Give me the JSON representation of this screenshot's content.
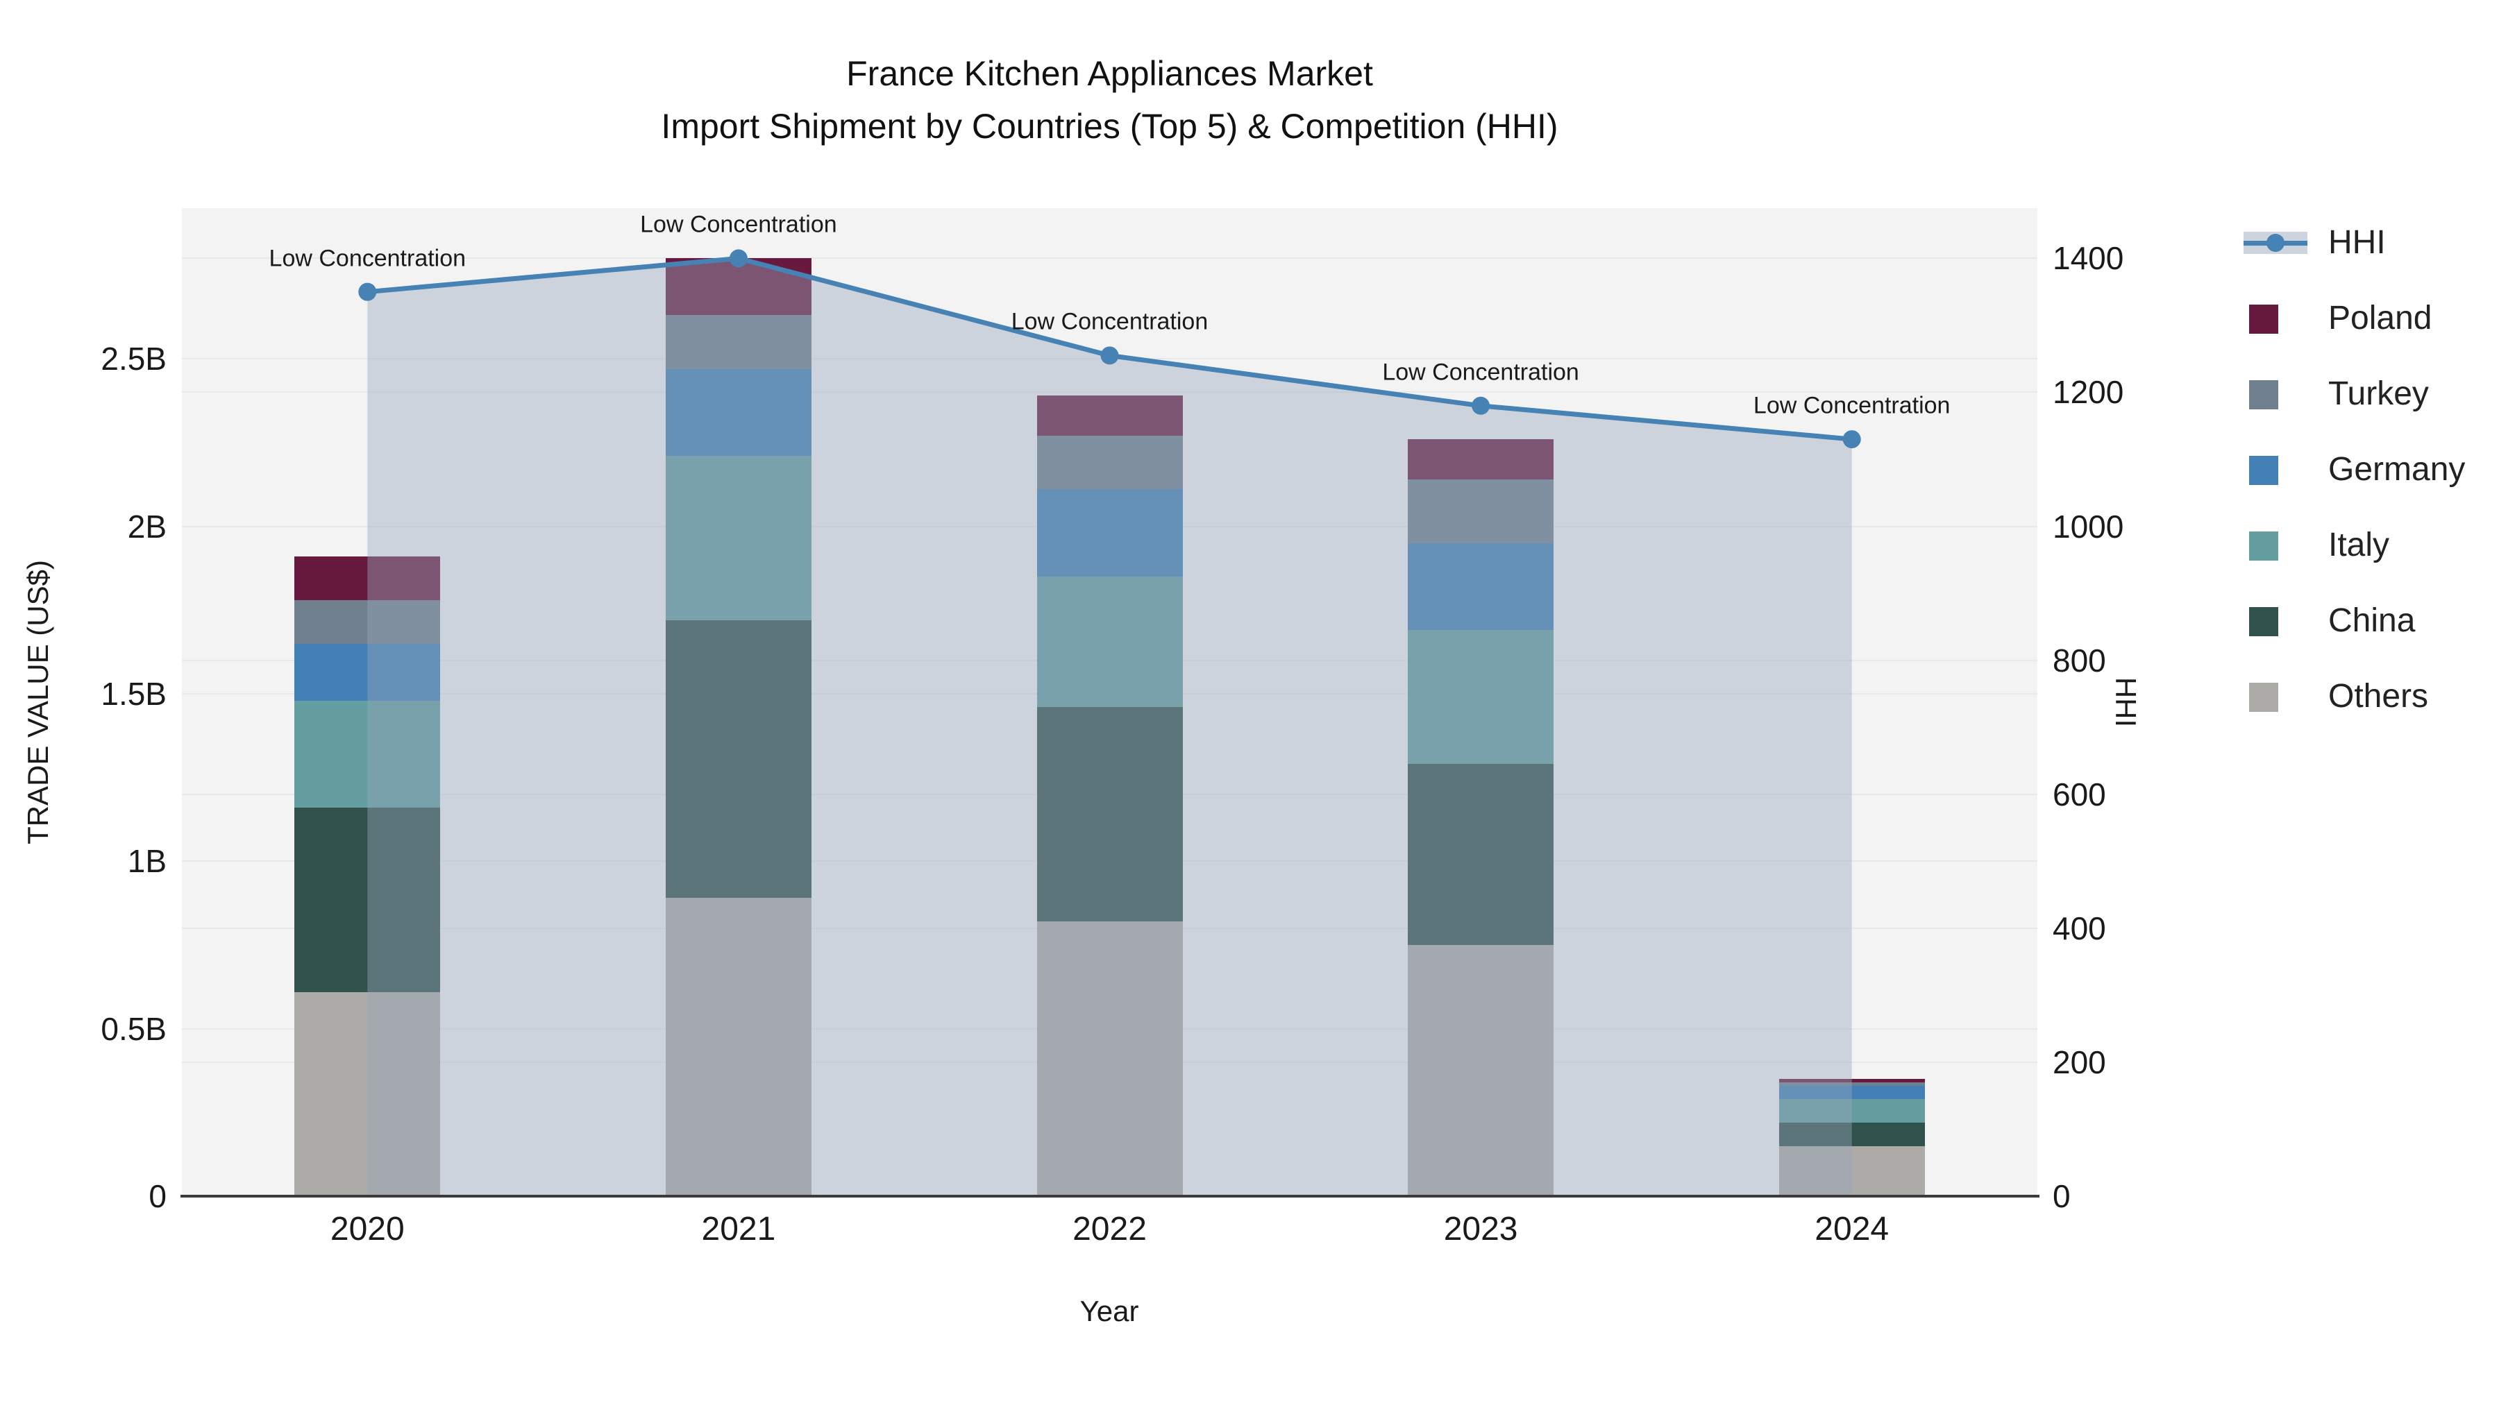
{
  "title": {
    "line1": "France Kitchen Appliances Market",
    "line2": "Import Shipment by Countries (Top 5) & Competition (HHI)"
  },
  "chart_data": {
    "type": "stacked-bar+line",
    "categories": [
      "2020",
      "2021",
      "2022",
      "2023",
      "2024"
    ],
    "bar_unit": "B (US$ billions)",
    "bar_series": [
      {
        "name": "Others",
        "color": "#ACABA7",
        "values": [
          0.61,
          0.89,
          0.82,
          0.75,
          0.15
        ]
      },
      {
        "name": "China",
        "color": "#31514D",
        "values": [
          0.55,
          0.83,
          0.64,
          0.54,
          0.07
        ]
      },
      {
        "name": "Italy",
        "color": "#649EA0",
        "values": [
          0.32,
          0.49,
          0.39,
          0.4,
          0.07
        ]
      },
      {
        "name": "Germany",
        "color": "#4380B5",
        "values": [
          0.17,
          0.26,
          0.26,
          0.26,
          0.04
        ]
      },
      {
        "name": "Turkey",
        "color": "#71808F",
        "values": [
          0.13,
          0.16,
          0.16,
          0.19,
          0.01
        ]
      },
      {
        "name": "Poland",
        "color": "#681A3E",
        "values": [
          0.13,
          0.17,
          0.12,
          0.12,
          0.01
        ]
      }
    ],
    "line_series": {
      "name": "HHI",
      "color": "#4682B4",
      "area_fill_color": "rgba(151,166,186,0.42)",
      "values": [
        1350,
        1400,
        1255,
        1180,
        1130
      ]
    },
    "annotations": [
      "Low Concentration",
      "Low Concentration",
      "Low Concentration",
      "Low Concentration",
      "Low Concentration"
    ],
    "xlabel": "Year",
    "ylabel_left": "TRADE VALUE (US$)",
    "ylabel_right": "HHI",
    "y_left": {
      "min": 0,
      "max": 2.95,
      "tick_step": 0.5,
      "tick_labels": [
        "0",
        "0.5B",
        "1B",
        "1.5B",
        "2B",
        "2.5B"
      ]
    },
    "y_right": {
      "min": 0,
      "max": 1475,
      "tick_step": 200,
      "tick_labels": [
        "0",
        "200",
        "400",
        "600",
        "800",
        "1000",
        "1200",
        "1400"
      ]
    },
    "legend_order": [
      "HHI",
      "Poland",
      "Turkey",
      "Germany",
      "Italy",
      "China",
      "Others"
    ],
    "legend_position": "right",
    "grid": true,
    "plot_background": "#F3F3F4"
  }
}
